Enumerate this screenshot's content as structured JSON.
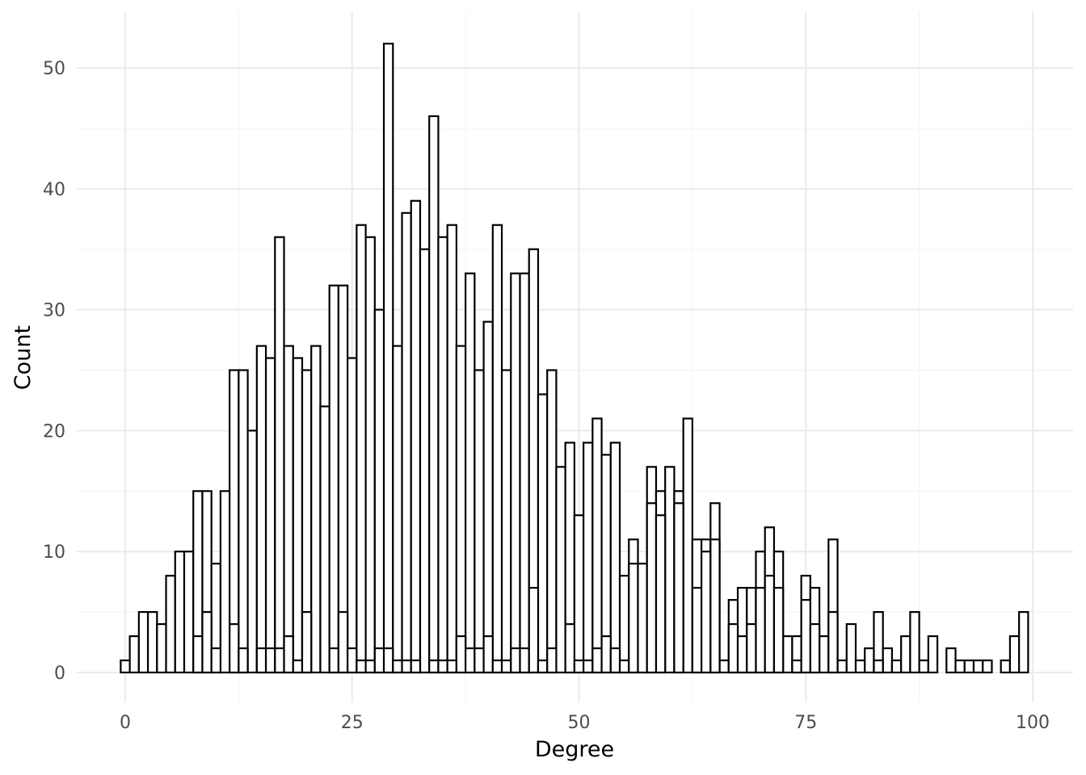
{
  "chart_data": {
    "type": "bar",
    "subtype": "histogram",
    "title": "",
    "xlabel": "Degree",
    "ylabel": "Count",
    "xlim": [
      -2.5,
      101.5
    ],
    "ylim": [
      -4.5,
      55
    ],
    "x_ticks": [
      0,
      25,
      50,
      75,
      100
    ],
    "y_ticks": [
      0,
      10,
      20,
      30,
      40,
      50
    ],
    "x_tick_labels": [
      "0",
      "25",
      "50",
      "75",
      "100"
    ],
    "y_tick_labels": [
      "0",
      "10",
      "20",
      "30",
      "40",
      "50"
    ],
    "grid": true,
    "legend": "none",
    "bar_fill": "#ffffff",
    "bar_outline": "#000000",
    "series": [
      {
        "values": [
          1,
          3,
          5,
          5,
          4,
          8,
          10,
          10,
          15,
          15,
          9,
          15,
          25,
          25,
          20,
          27,
          26,
          36,
          27,
          26,
          25,
          27,
          22,
          32,
          32,
          26,
          37,
          36,
          30,
          52,
          27,
          38,
          39,
          35,
          46,
          36,
          37,
          27,
          33,
          25,
          29,
          37,
          25,
          33,
          33,
          35,
          23,
          25,
          17,
          19,
          13,
          19,
          21,
          18,
          19,
          8,
          11,
          9,
          17,
          15,
          17,
          15,
          21,
          11,
          11,
          14,
          1,
          6,
          7,
          7,
          10,
          12,
          10,
          3,
          3,
          8,
          7,
          3,
          11,
          1,
          4,
          1,
          2,
          5,
          2,
          1,
          3,
          5,
          1,
          3,
          0,
          2,
          1,
          1,
          1,
          1,
          0,
          1,
          3,
          5
        ]
      },
      {
        "values": [
          0,
          0,
          0,
          0,
          0,
          0,
          0,
          0,
          3,
          5,
          2,
          0,
          4,
          2,
          0,
          2,
          2,
          2,
          3,
          1,
          5,
          0,
          0,
          2,
          5,
          2,
          1,
          1,
          2,
          2,
          1,
          1,
          1,
          0,
          1,
          1,
          1,
          3,
          2,
          2,
          3,
          1,
          1,
          2,
          2,
          7,
          1,
          2,
          0,
          4,
          1,
          1,
          2,
          3,
          2,
          1,
          9,
          9,
          14,
          13,
          0,
          14,
          0,
          7,
          10,
          11,
          0,
          4,
          3,
          4,
          7,
          8,
          7,
          0,
          1,
          6,
          4,
          0,
          5,
          0,
          0,
          0,
          0,
          1,
          0,
          0,
          0,
          0,
          0,
          0,
          0,
          0,
          0,
          0,
          0,
          0,
          0,
          0,
          0,
          0
        ]
      }
    ]
  }
}
